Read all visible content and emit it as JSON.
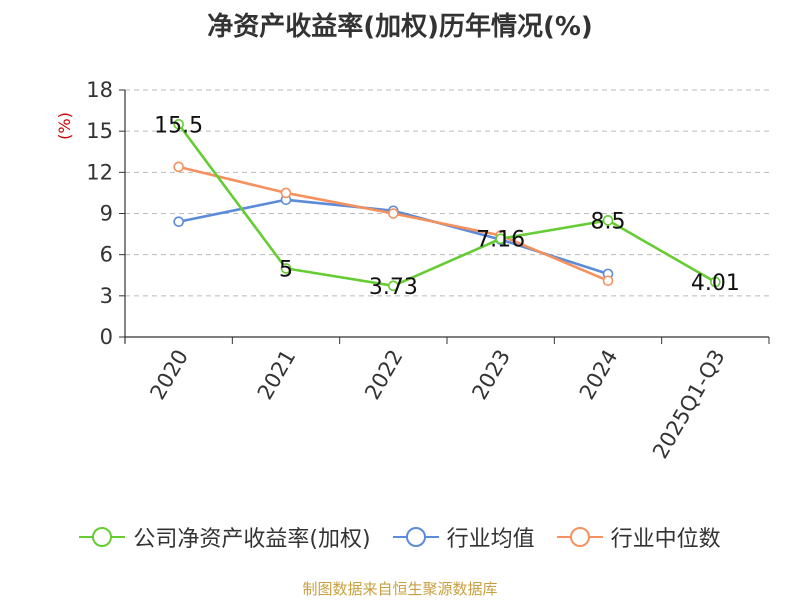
{
  "title": "净资产收益率(加权)历年情况(%)",
  "source": "制图数据来自恒生聚源数据库",
  "colors": {
    "company": "#66cc33",
    "industry_avg": "#5b8bd9",
    "industry_median": "#f5915f",
    "ylabel": "#cc0000",
    "grid": "#bbbbbb",
    "axis": "#333333"
  },
  "chart_data": {
    "type": "line",
    "title": "净资产收益率(加权)历年情况(%)",
    "ylabel": "(%)",
    "xlabel": "",
    "categories": [
      "2020",
      "2021",
      "2022",
      "2023",
      "2024",
      "2025Q1-Q3"
    ],
    "yticks": [
      0,
      3,
      6,
      9,
      12,
      15,
      18
    ],
    "ylim": [
      0,
      18
    ],
    "grid": true,
    "legend_position": "bottom",
    "series": [
      {
        "name": "公司净资产收益率(加权)",
        "values": [
          15.5,
          5,
          3.73,
          7.16,
          8.5,
          4.01
        ],
        "labels": [
          "15.5",
          "5",
          "3.73",
          "7.16",
          "8.5",
          "4.01"
        ]
      },
      {
        "name": "行业均值",
        "values": [
          8.4,
          10.0,
          9.2,
          7.1,
          4.6,
          null
        ]
      },
      {
        "name": "行业中位数",
        "values": [
          12.4,
          10.5,
          9.0,
          7.4,
          4.1,
          null
        ]
      }
    ]
  }
}
